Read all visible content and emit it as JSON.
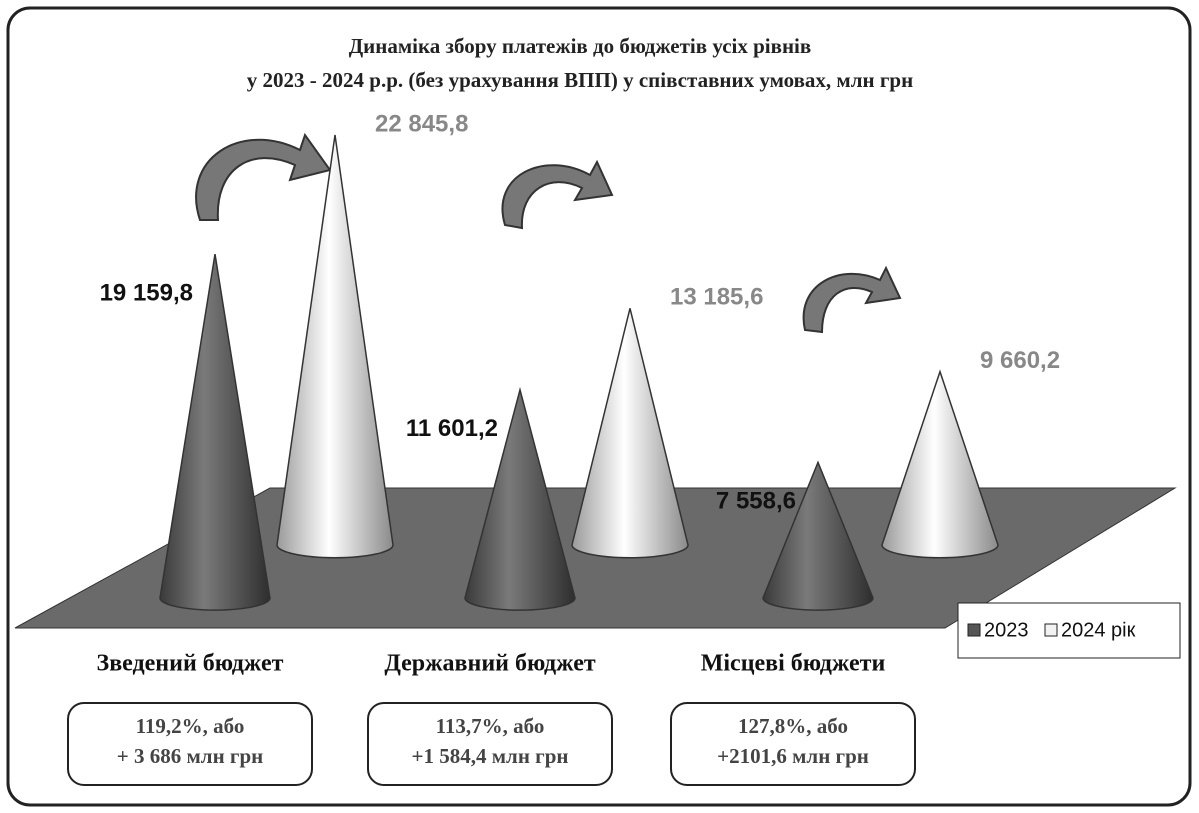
{
  "chart_data": {
    "type": "cone",
    "title": [
      "Динаміка збору платежів до бюджетів усіх рівнів",
      "у 2023 - 2024 р.р. (без урахування ВПП) у співставних умовах,  млн грн"
    ],
    "categories": [
      "Зведений бюджет",
      "Державний бюджет",
      "Місцеві бюджети"
    ],
    "series": [
      {
        "name": "2023",
        "color": "#555555",
        "values": [
          19159.8,
          11601.2,
          7558.6
        ],
        "value_labels": [
          "19 159,8",
          "11 601,2",
          "7 558,6"
        ]
      },
      {
        "name": "2024 рік",
        "color": "#f2f2f2",
        "values": [
          22845.8,
          13185.6,
          9660.2
        ],
        "value_labels": [
          "22 845,8",
          "13 185,6",
          "9 660,2"
        ]
      }
    ],
    "annotations": [
      [
        "119,2%, або",
        "+ 3 686 млн грн"
      ],
      [
        "113,7%, або",
        "+1 584,4 млн грн"
      ],
      [
        "127,8%, або",
        "+2101,6 млн грн"
      ]
    ],
    "legend": "bottom-right"
  }
}
